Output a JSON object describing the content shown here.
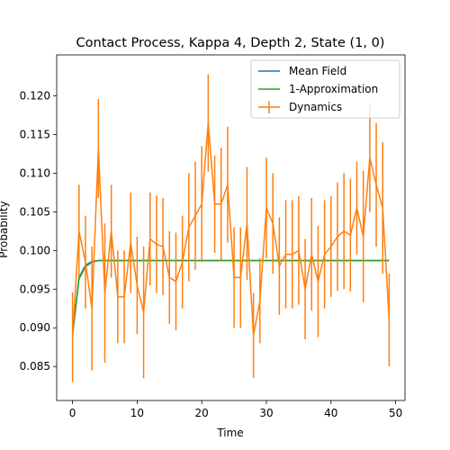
{
  "chart_data": {
    "type": "line",
    "title": "Contact Process, Kappa 4, Depth 2, State (1, 0)",
    "xlabel": "Time",
    "ylabel": "Probability",
    "xlim": [
      -2.45,
      51.45
    ],
    "ylim": [
      0.0806,
      0.1253
    ],
    "xticks": [
      0,
      10,
      20,
      30,
      40,
      50
    ],
    "yticks": [
      0.085,
      0.09,
      0.095,
      0.1,
      0.105,
      0.11,
      0.115,
      0.12
    ],
    "ytick_labels": [
      "0.085",
      "0.090",
      "0.095",
      "0.100",
      "0.105",
      "0.110",
      "0.115",
      "0.120"
    ],
    "legend_position": "top-right",
    "series": [
      {
        "name": "Mean Field",
        "color": "#1f77b4",
        "kind": "line",
        "x": [
          0,
          1,
          2,
          3,
          4,
          5,
          6,
          7,
          8,
          9,
          10,
          11,
          12,
          13,
          14,
          15,
          16,
          17,
          18,
          19,
          20,
          21,
          22,
          23,
          24,
          25,
          26,
          27,
          28,
          29,
          30,
          31,
          32,
          33,
          34,
          35,
          36,
          37,
          38,
          39,
          40,
          41,
          42,
          43,
          44,
          45,
          46,
          47,
          48,
          49
        ],
        "y": [
          0.089,
          0.0965,
          0.0981,
          0.0986,
          0.0987,
          0.0987,
          0.0987,
          0.0987,
          0.0987,
          0.0987,
          0.0987,
          0.0987,
          0.0987,
          0.0987,
          0.0987,
          0.0987,
          0.0987,
          0.0987,
          0.0987,
          0.0987,
          0.0987,
          0.0987,
          0.0987,
          0.0987,
          0.0987,
          0.0987,
          0.0987,
          0.0987,
          0.0987,
          0.0987,
          0.0987,
          0.0987,
          0.0987,
          0.0987,
          0.0987,
          0.0987,
          0.0987,
          0.0987,
          0.0987,
          0.0987,
          0.0987,
          0.0987,
          0.0987,
          0.0987,
          0.0987,
          0.0987,
          0.0987,
          0.0987,
          0.0987,
          0.0987
        ]
      },
      {
        "name": "1-Approximation",
        "color": "#2ca02c",
        "kind": "line",
        "x": [
          0,
          1,
          2,
          3,
          4,
          5,
          6,
          7,
          8,
          9,
          10,
          11,
          12,
          13,
          14,
          15,
          16,
          17,
          18,
          19,
          20,
          21,
          22,
          23,
          24,
          25,
          26,
          27,
          28,
          29,
          30,
          31,
          32,
          33,
          34,
          35,
          36,
          37,
          38,
          39,
          40,
          41,
          42,
          43,
          44,
          45,
          46,
          47,
          48,
          49
        ],
        "y": [
          0.089,
          0.0963,
          0.0979,
          0.0985,
          0.0987,
          0.0987,
          0.0987,
          0.0987,
          0.0987,
          0.0987,
          0.0987,
          0.0987,
          0.0987,
          0.0987,
          0.0987,
          0.0987,
          0.0987,
          0.0987,
          0.0987,
          0.0987,
          0.0987,
          0.0987,
          0.0987,
          0.0987,
          0.0987,
          0.0987,
          0.0987,
          0.0987,
          0.0987,
          0.0987,
          0.0987,
          0.0987,
          0.0987,
          0.0987,
          0.0987,
          0.0987,
          0.0987,
          0.0987,
          0.0987,
          0.0987,
          0.0987,
          0.0987,
          0.0987,
          0.0987,
          0.0987,
          0.0987,
          0.0987,
          0.0987,
          0.0987,
          0.0987
        ]
      },
      {
        "name": "Dynamics",
        "color": "#ff7f0e",
        "kind": "errorbar",
        "x": [
          0,
          1,
          2,
          3,
          4,
          5,
          6,
          7,
          8,
          9,
          10,
          11,
          12,
          13,
          14,
          15,
          16,
          17,
          18,
          19,
          20,
          21,
          22,
          23,
          24,
          25,
          26,
          27,
          28,
          29,
          30,
          31,
          32,
          33,
          34,
          35,
          36,
          37,
          38,
          39,
          40,
          41,
          42,
          43,
          44,
          45,
          46,
          47,
          48,
          49
        ],
        "y": [
          0.0888,
          0.1025,
          0.0985,
          0.0925,
          0.1132,
          0.0945,
          0.1025,
          0.094,
          0.094,
          0.101,
          0.0955,
          0.092,
          0.1015,
          0.1008,
          0.1005,
          0.0965,
          0.096,
          0.0985,
          0.103,
          0.1045,
          0.106,
          0.1165,
          0.106,
          0.106,
          0.1085,
          0.0965,
          0.0965,
          0.1035,
          0.089,
          0.0935,
          0.1055,
          0.1035,
          0.098,
          0.0995,
          0.0995,
          0.1,
          0.095,
          0.0995,
          0.096,
          0.0995,
          0.1005,
          0.1018,
          0.1025,
          0.102,
          0.1055,
          0.1018,
          0.112,
          0.1085,
          0.1055,
          0.091
        ],
        "err": [
          0.0058,
          0.006,
          0.006,
          0.008,
          0.0064,
          0.009,
          0.006,
          0.006,
          0.006,
          0.0065,
          0.0063,
          0.0085,
          0.006,
          0.0063,
          0.0063,
          0.006,
          0.0063,
          0.006,
          0.007,
          0.007,
          0.0075,
          0.0063,
          0.0063,
          0.0073,
          0.0075,
          0.0065,
          0.0065,
          0.0073,
          0.0055,
          0.0055,
          0.0065,
          0.0065,
          0.0063,
          0.007,
          0.007,
          0.007,
          0.0065,
          0.0073,
          0.0072,
          0.007,
          0.0065,
          0.007,
          0.0075,
          0.0073,
          0.006,
          0.0085,
          0.007,
          0.008,
          0.0085,
          0.006
        ]
      }
    ]
  }
}
